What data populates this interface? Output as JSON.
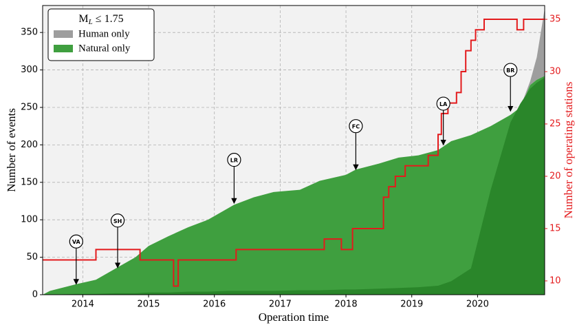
{
  "chart_data": {
    "type": "area",
    "xlabel": "Operation time",
    "ylabel": "Number of events",
    "y2label": "Number of operating stations",
    "legend_title": [
      "M",
      "L",
      " ≤ 1.75"
    ],
    "legend": "upper left",
    "grid": true,
    "x": [
      2013.39,
      2013.5,
      2013.9,
      2014.2,
      2014.5,
      2014.8,
      2015.0,
      2015.3,
      2015.6,
      2015.9,
      2016.2,
      2016.3,
      2016.6,
      2016.9,
      2017.3,
      2017.6,
      2018.0,
      2018.15,
      2018.5,
      2018.8,
      2019.1,
      2019.4,
      2019.6,
      2019.9,
      2020.2,
      2020.5,
      2020.65,
      2020.8,
      2020.9,
      2021.02
    ],
    "series": [
      {
        "name": "Natural only",
        "color": "#3f9f3f",
        "values": [
          0,
          5,
          14,
          20,
          35,
          50,
          65,
          78,
          90,
          100,
          115,
          120,
          130,
          137,
          140,
          152,
          160,
          167,
          175,
          183,
          186,
          193,
          205,
          213,
          225,
          240,
          250,
          280,
          287,
          292
        ]
      },
      {
        "name": "Human only",
        "color": "#9e9e9e",
        "stack": true,
        "values": [
          0,
          0,
          0,
          0,
          0,
          0,
          0,
          0,
          0,
          0,
          0,
          0,
          0,
          0,
          0,
          0,
          0,
          0,
          0,
          0,
          0,
          0,
          0,
          0,
          0,
          0,
          0,
          5,
          30,
          90
        ]
      },
      {
        "color": "#2a862a",
        "values": [
          0,
          0,
          1,
          1,
          2,
          2,
          3,
          3,
          4,
          4,
          5,
          5,
          5,
          5,
          6,
          6,
          7,
          7,
          8,
          9,
          10,
          12,
          18,
          35,
          140,
          230,
          255,
          275,
          283,
          290
        ]
      },
      {
        "color": "#e31a1c",
        "axis": "y2",
        "step": true,
        "x": [
          2013.39,
          2014.2,
          2014.87,
          2015.38,
          2015.45,
          2016.33,
          2017.67,
          2017.93,
          2018.1,
          2018.57,
          2018.65,
          2018.75,
          2018.9,
          2019.25,
          2019.4,
          2019.45,
          2019.55,
          2019.68,
          2019.75,
          2019.82,
          2019.9,
          2019.97,
          2020.1,
          2020.6,
          2020.7,
          2021.02
        ],
        "values": [
          12,
          13,
          12,
          9.5,
          12,
          13,
          14,
          13,
          15,
          18,
          19,
          20,
          21,
          22,
          24,
          26,
          27,
          28,
          30,
          32,
          33,
          34,
          35,
          34,
          35,
          35
        ]
      }
    ],
    "annotations": [
      {
        "text": "VA",
        "x": 2013.9,
        "y": 14,
        "text_y": 71
      },
      {
        "text": "SH",
        "x": 2014.53,
        "y": 36,
        "text_y": 99
      },
      {
        "text": "LR",
        "x": 2016.3,
        "y": 122,
        "text_y": 180
      },
      {
        "text": "FC",
        "x": 2018.15,
        "y": 167,
        "text_y": 225
      },
      {
        "text": "LA",
        "x": 2019.48,
        "y": 200,
        "text_y": 255
      },
      {
        "text": "BR",
        "x": 2020.5,
        "y": 245,
        "text_y": 300
      }
    ],
    "xlim": [
      2013.39,
      2021.02
    ],
    "xticks": [
      2014,
      2015,
      2016,
      2017,
      2018,
      2019,
      2020
    ],
    "ylim": [
      0,
      386
    ],
    "yticks": [
      0,
      50,
      100,
      150,
      200,
      250,
      300,
      350
    ],
    "y2lim": [
      8.68,
      36.32
    ],
    "y2ticks": [
      10,
      15,
      20,
      25,
      30,
      35
    ]
  }
}
